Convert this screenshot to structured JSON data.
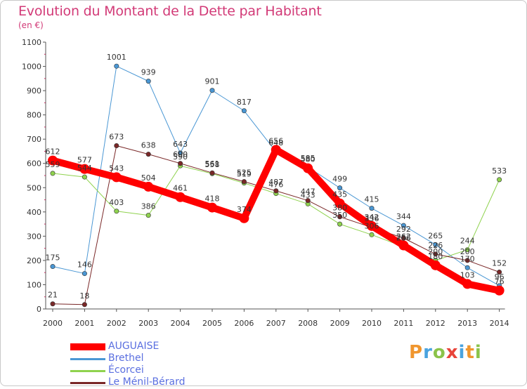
{
  "header": {
    "title": "Evolution du Montant de la Dette par Habitant",
    "unit": "(en €)"
  },
  "logo": {
    "text": "Proxiti",
    "colors": [
      "#f0962e",
      "#4aa3df",
      "#8bc34a",
      "#e8443a",
      "#4aa3df",
      "#f0962e",
      "#8bc34a"
    ]
  },
  "chart_data": {
    "type": "line",
    "title": "Evolution du Montant de la Dette par Habitant",
    "ylabel": "(en €)",
    "xlabel": "",
    "ylim": [
      0,
      1100
    ],
    "yticks": [
      0,
      100,
      200,
      300,
      400,
      500,
      600,
      700,
      800,
      900,
      1000,
      1100
    ],
    "grid": false,
    "legend_position": "bottom-left",
    "x": [
      "2000",
      "2001",
      "2002",
      "2003",
      "2004",
      "2005",
      "2006",
      "2007",
      "2008",
      "2009",
      "2010",
      "2011",
      "2012",
      "2013",
      "2014"
    ],
    "series": [
      {
        "name": "AUGUAISE",
        "color": "#ff0000",
        "values": [
          612,
          577,
          543,
          504,
          461,
          418,
          374,
          656,
          580,
          435,
          342,
          262,
          180,
          103,
          76
        ]
      },
      {
        "name": "Brethel",
        "color": "#4a97d4",
        "values": [
          175,
          146,
          1001,
          939,
          643,
          901,
          817,
          648,
          585,
          499,
          415,
          344,
          265,
          170,
          96
        ]
      },
      {
        "name": "Écorcei",
        "color": "#8fd24e",
        "values": [
          559,
          544,
          403,
          386,
          590,
          558,
          519,
          476,
          433,
          350,
          306,
          256,
          200,
          244,
          533
        ]
      },
      {
        "name": "Le Ménil-Bérard",
        "color": "#7a2828",
        "values": [
          21,
          18,
          673,
          638,
          600,
          561,
          525,
          487,
          447,
          380,
          336,
          292,
          226,
          200,
          152
        ]
      }
    ]
  }
}
